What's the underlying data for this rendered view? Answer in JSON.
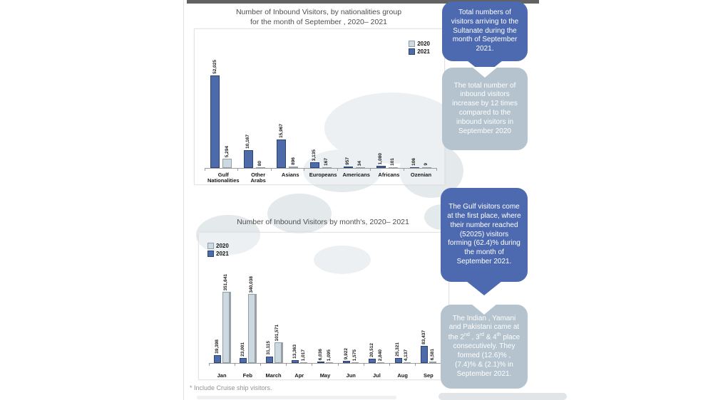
{
  "page": {
    "footnote": "* Include Cruise ship visitors."
  },
  "colors": {
    "bubble_blue": "#4d6ab0",
    "bubble_gray": "#b4c3cd",
    "bar_2021": "#4d6aa9",
    "bar_2020": "#cdd9e1"
  },
  "chart_data": [
    {
      "type": "bar",
      "title": "Number of Inbound Visitors, by nationalities group for the month of September , 2020– 2021",
      "title_lines": [
        "Number of Inbound Visitors, by nationalities group",
        "for the month of September , 2020– 2021"
      ],
      "categories": [
        "Gulf Nationalities",
        "Other Arabs",
        "Asians",
        "Europeans",
        "Americans",
        "Africans",
        "Ozenian"
      ],
      "series": [
        {
          "name": "2021",
          "color": "#4d6aa9",
          "border": "#2c4475",
          "values": [
            52025,
            10167,
            15967,
            3135,
            957,
            1080,
            106
          ]
        },
        {
          "name": "2020",
          "color": "#cdd9e1",
          "border": "#8fa0ab",
          "values": [
            5294,
            80,
            896,
            167,
            34,
            101,
            9
          ]
        }
      ],
      "legend": [
        {
          "label": "2020",
          "color": "#cdd9e1",
          "border": "#8fa0ab"
        },
        {
          "label": "2021",
          "color": "#4d6aa9",
          "border": "#2c4475"
        }
      ],
      "legend_position": "top-right",
      "bar_order": "2021 left, 2020 right",
      "ylim": [
        0,
        52025
      ],
      "grid": false,
      "value_labels": "rotated 90deg above bars, thousands separated by commas"
    },
    {
      "type": "bar",
      "title": "Number of Inbound Visitors by month's, 2020– 2021",
      "title_lines": [
        "Number of Inbound Visitors by month's, 2020– 2021"
      ],
      "categories": [
        "Jan",
        "Feb",
        "March",
        "Apr",
        "May",
        "Jun",
        "Jul",
        "Aug",
        "Sep"
      ],
      "series": [
        {
          "name": "2021",
          "color": "#4d6aa9",
          "border": "#2c4475",
          "values": [
            39398,
            23001,
            31115,
            13363,
            6036,
            9922,
            20512,
            25321,
            83437
          ]
        },
        {
          "name": "2020",
          "color": "#cdd9e1",
          "border": "#8fa0ab",
          "values": [
            351641,
            340038,
            101571,
            1017,
            1095,
            1575,
            2840,
            4137,
            6581
          ]
        }
      ],
      "legend": [
        {
          "label": "2020",
          "color": "#cdd9e1",
          "border": "#8fa0ab"
        },
        {
          "label": "2021",
          "color": "#4d6aa9",
          "border": "#2c4475"
        }
      ],
      "legend_position": "top-left",
      "bar_order": "2021 left, 2020 right",
      "ylim": [
        0,
        351641
      ],
      "grid": false,
      "value_labels": "rotated 90deg above bars, thousands separated by commas"
    }
  ],
  "callouts": [
    {
      "style": "blue",
      "text": "Total numbers of visitors arriving to the Sultanate during the month of September 2021."
    },
    {
      "style": "gray",
      "text": "The  total number of inbound visitors increase by 12 times compared to the inbound visitors in September 2020"
    },
    {
      "style": "blue",
      "text": "The Gulf visitors come at the first place, where their number reached (52025) visitors forming (62.4)% during the month of September 2021."
    },
    {
      "style": "gray",
      "html": "The Indian , Yamani and Pakistani came at the 2<sup>nd</sup> , 3<sup>rd</sup> & 4<sup>th</sup> place consecutively. They formed (12.6)% , (7.4)% & (2.1)% in September 2021."
    }
  ]
}
